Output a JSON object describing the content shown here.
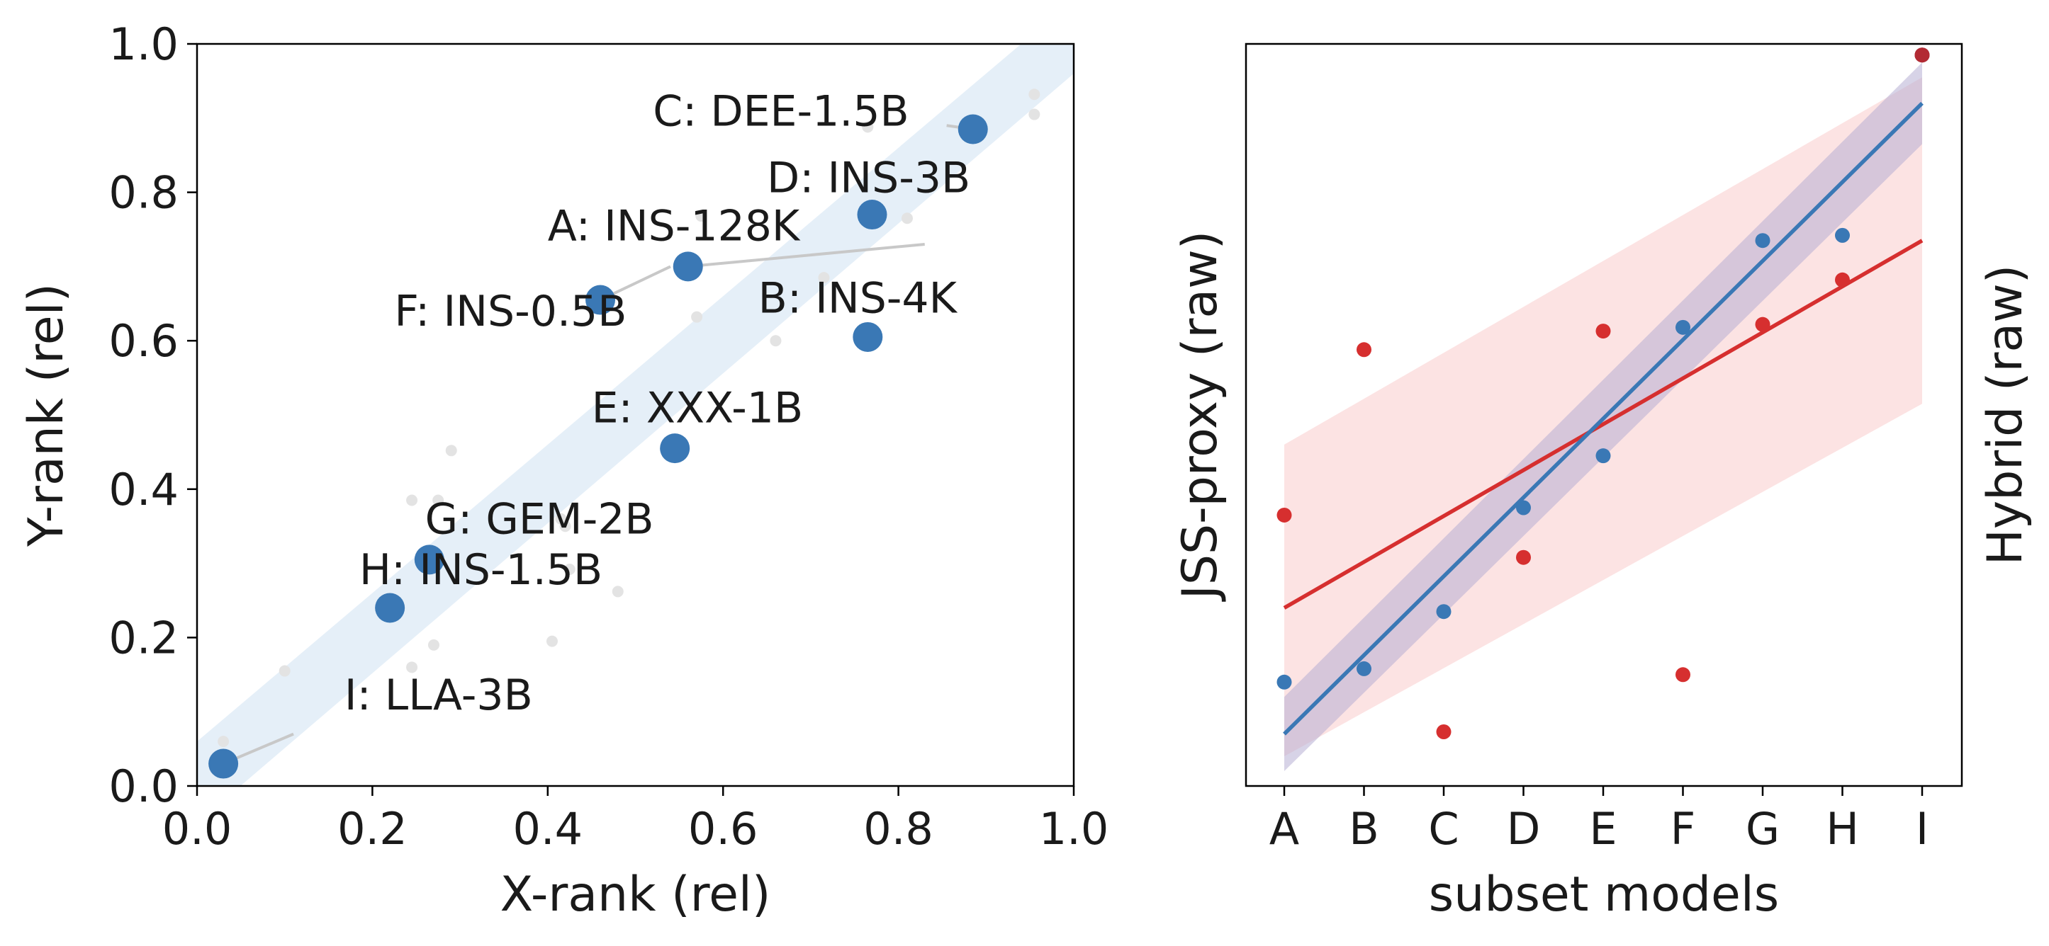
{
  "colors": {
    "blue": "#3a78b5",
    "blue_band": "#dce9f5",
    "red": "#d62f2f",
    "red_band": "#fbdede",
    "purple_band": "#b6aed3",
    "faint_point": "#e3e3e3",
    "leader": "#c8c8c8"
  },
  "chart_data": [
    {
      "type": "scatter",
      "xlabel": "X-rank (rel)",
      "ylabel": "Y-rank (rel)",
      "xlim": [
        0,
        1
      ],
      "ylim": [
        0,
        1
      ],
      "xticks": [
        "0.0",
        "0.2",
        "0.4",
        "0.6",
        "0.8",
        "1.0"
      ],
      "yticks": [
        "0.0",
        "0.2",
        "0.4",
        "0.6",
        "0.8",
        "1.0"
      ],
      "grid": false,
      "band": {
        "lower": [
          [
            0,
            -0.05
          ],
          [
            1,
            0.96
          ]
        ],
        "upper": [
          [
            0,
            0.06
          ],
          [
            1,
            1.06
          ]
        ]
      },
      "points": [
        {
          "label": "A: INS-128K",
          "x": 0.56,
          "y": 0.7,
          "lx": 0.4,
          "ly": 0.735,
          "from": [
            0.83,
            0.73
          ]
        },
        {
          "label": "B: INS-4K",
          "x": 0.765,
          "y": 0.605,
          "lx": 0.64,
          "ly": 0.638
        },
        {
          "label": "C: DEE-1.5B",
          "x": 0.885,
          "y": 0.885,
          "lx": 0.52,
          "ly": 0.89,
          "from": [
            0.855,
            0.89
          ]
        },
        {
          "label": "D: INS-3B",
          "x": 0.77,
          "y": 0.77,
          "lx": 0.65,
          "ly": 0.8
        },
        {
          "label": "E: XXX-1B",
          "x": 0.545,
          "y": 0.455,
          "lx": 0.45,
          "ly": 0.49
        },
        {
          "label": "F: INS-0.5B",
          "x": 0.46,
          "y": 0.655,
          "lx": 0.225,
          "ly": 0.62,
          "from": [
            0.54,
            0.7
          ]
        },
        {
          "label": "G: GEM-2B",
          "x": 0.265,
          "y": 0.305,
          "lx": 0.26,
          "ly": 0.34
        },
        {
          "label": "H: INS-1.5B",
          "x": 0.22,
          "y": 0.24,
          "lx": 0.185,
          "ly": 0.272
        },
        {
          "label": "I: LLA-3B",
          "x": 0.03,
          "y": 0.03,
          "lx": 0.168,
          "ly": 0.103,
          "from": [
            0.11,
            0.07
          ]
        }
      ],
      "background_points": [
        [
          0.03,
          0.06
        ],
        [
          0.1,
          0.155
        ],
        [
          0.245,
          0.16
        ],
        [
          0.245,
          0.385
        ],
        [
          0.275,
          0.385
        ],
        [
          0.29,
          0.452
        ],
        [
          0.27,
          0.19
        ],
        [
          0.405,
          0.195
        ],
        [
          0.415,
          0.36
        ],
        [
          0.42,
          0.35
        ],
        [
          0.425,
          0.292
        ],
        [
          0.48,
          0.262
        ],
        [
          0.57,
          0.632
        ],
        [
          0.575,
          0.768
        ],
        [
          0.66,
          0.6
        ],
        [
          0.715,
          0.685
        ],
        [
          0.765,
          0.888
        ],
        [
          0.81,
          0.765
        ],
        [
          0.955,
          0.905
        ],
        [
          0.955,
          0.932
        ]
      ]
    },
    {
      "type": "scatter",
      "xlabel": "subset models",
      "ylabel": "JSS-proxy (raw)",
      "ylabel_right": "Hybrid (raw)",
      "categories": [
        "A",
        "B",
        "C",
        "D",
        "E",
        "F",
        "G",
        "H",
        "I"
      ],
      "yrange": [
        0,
        1
      ],
      "grid": false,
      "series": [
        {
          "values": [
            0.14,
            0.158,
            0.235,
            0.375,
            0.445,
            0.618,
            0.735,
            0.742,
            0.985
          ],
          "fit": [
            0.07,
            0.92
          ],
          "band_lower": [
            0.02,
            0.865
          ],
          "band_upper": [
            0.12,
            0.975
          ]
        },
        {
          "values": [
            0.365,
            0.588,
            0.073,
            0.308,
            0.613,
            0.15,
            0.622,
            0.682,
            0.985
          ],
          "fit": [
            0.24,
            0.735
          ],
          "band_lower": [
            0.04,
            0.515
          ],
          "band_upper": [
            0.46,
            0.955
          ]
        }
      ]
    }
  ]
}
